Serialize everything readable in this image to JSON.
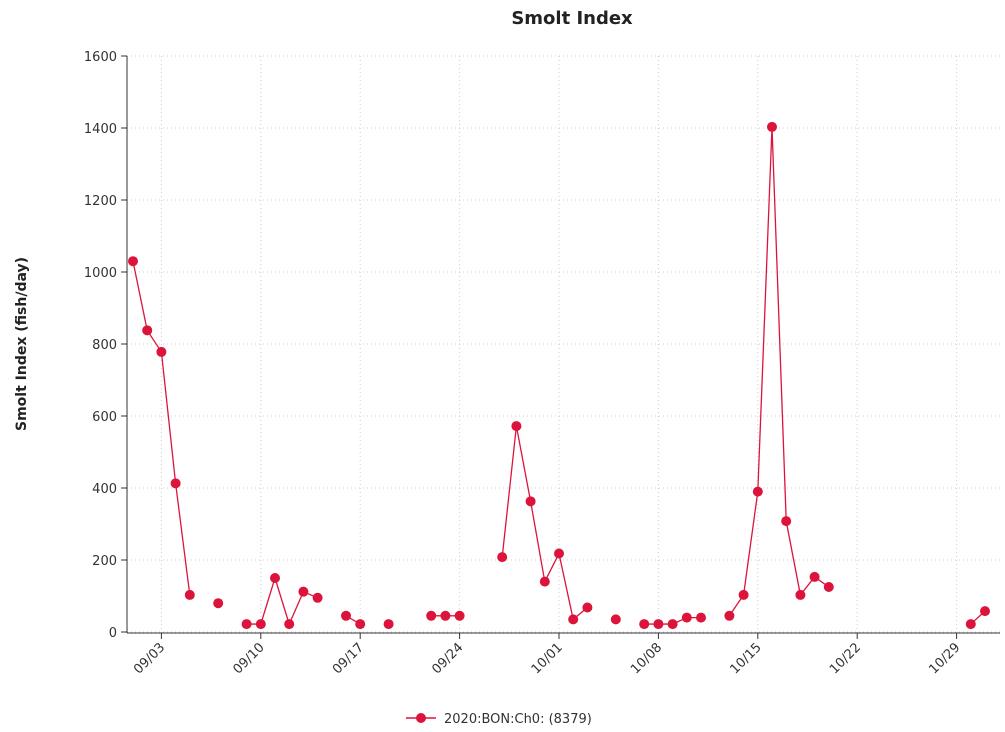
{
  "chart_data": {
    "type": "line",
    "title": "Smolt Index",
    "y_label": "Smolt Index (fish/day)",
    "x": [
      "09/01",
      "09/02",
      "09/03",
      "09/04",
      "09/05",
      "09/06",
      "09/07",
      "09/08",
      "09/09",
      "09/10",
      "09/11",
      "09/12",
      "09/13",
      "09/14",
      "09/15",
      "09/16",
      "09/17",
      "09/18",
      "09/19",
      "09/20",
      "09/21",
      "09/22",
      "09/23",
      "09/24",
      "09/25",
      "09/26",
      "09/27",
      "09/28",
      "09/29",
      "09/30",
      "10/01",
      "10/02",
      "10/03",
      "10/04",
      "10/05",
      "10/06",
      "10/07",
      "10/08",
      "10/09",
      "10/10",
      "10/11",
      "10/12",
      "10/13",
      "10/14",
      "10/15",
      "10/16",
      "10/17",
      "10/18",
      "10/19",
      "10/20",
      "10/21",
      "10/22",
      "10/23",
      "10/24",
      "10/25",
      "10/26",
      "10/27",
      "10/28",
      "10/29",
      "10/30",
      "10/31"
    ],
    "series": [
      {
        "name": "2020:BON:Ch0: (8379)",
        "color": "#dc143c",
        "values": [
          1030,
          838,
          778,
          413,
          103,
          null,
          80,
          null,
          22,
          22,
          150,
          22,
          112,
          95,
          null,
          45,
          22,
          null,
          22,
          null,
          null,
          45,
          45,
          45,
          null,
          null,
          208,
          572,
          363,
          140,
          218,
          35,
          68,
          null,
          35,
          null,
          22,
          22,
          22,
          40,
          40,
          null,
          45,
          103,
          390,
          1403,
          308,
          103,
          153,
          125,
          null,
          null,
          null,
          null,
          null,
          null,
          null,
          null,
          null,
          22,
          58
        ]
      }
    ],
    "xlim": [
      "09/01",
      "10/31"
    ],
    "xticks": [
      "09/03",
      "09/10",
      "09/17",
      "09/24",
      "10/01",
      "10/08",
      "10/15",
      "10/22",
      "10/29"
    ],
    "ylim": [
      0,
      1600
    ],
    "yticks": [
      0,
      200,
      400,
      600,
      800,
      1000,
      1200,
      1400,
      1600
    ],
    "grid": true,
    "legend": "bottom"
  }
}
